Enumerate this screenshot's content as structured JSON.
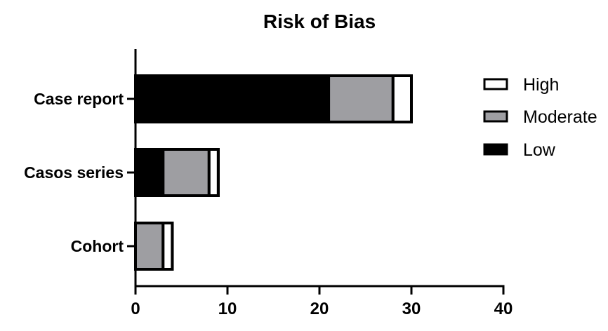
{
  "chart_data": {
    "type": "bar",
    "orientation": "horizontal",
    "stacked": true,
    "title": "Risk of Bias",
    "xlabel": "",
    "ylabel": "",
    "categories": [
      "Case report",
      "Casos series",
      "Cohort"
    ],
    "series": [
      {
        "name": "Low",
        "values": [
          21,
          3,
          0
        ],
        "color": "#000000"
      },
      {
        "name": "Moderate",
        "values": [
          7,
          5,
          3
        ],
        "color": "#9e9ea2"
      },
      {
        "name": "High",
        "values": [
          2,
          1,
          1
        ],
        "color": "#ffffff"
      }
    ],
    "xlim": [
      0,
      40
    ],
    "xticks": [
      "0",
      "10",
      "20",
      "30",
      "40"
    ],
    "grid": false,
    "legend": {
      "position": "right",
      "order": [
        "High",
        "Moderate",
        "Low"
      ]
    }
  }
}
